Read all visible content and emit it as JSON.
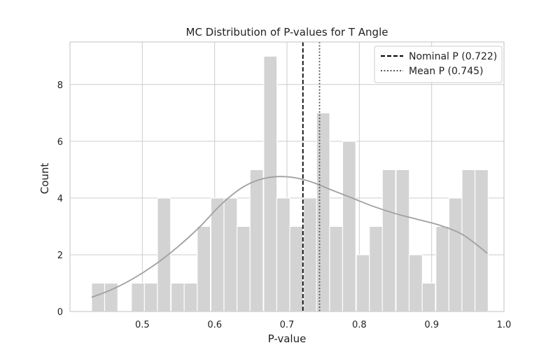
{
  "chart_data": {
    "type": "bar",
    "title": "MC Distribution of P-values for T Angle",
    "xlabel": "P-value",
    "ylabel": "Count",
    "xlim": [
      0.4,
      1.0
    ],
    "ylim": [
      0,
      9.5
    ],
    "x_ticks": [
      0.5,
      0.6,
      0.7,
      0.8,
      0.9,
      1.0
    ],
    "x_tick_labels": [
      "0.5",
      "0.6",
      "0.7",
      "0.8",
      "0.9",
      "1.0"
    ],
    "y_ticks": [
      0,
      2,
      4,
      6,
      8
    ],
    "y_tick_labels": [
      "0",
      "2",
      "4",
      "6",
      "8"
    ],
    "grid": true,
    "legend_position": "top-right",
    "bin_width": 0.01829,
    "bins": [
      {
        "x": 0.439,
        "count": 1
      },
      {
        "x": 0.457,
        "count": 1
      },
      {
        "x": 0.475,
        "count": 0
      },
      {
        "x": 0.494,
        "count": 1
      },
      {
        "x": 0.512,
        "count": 1
      },
      {
        "x": 0.53,
        "count": 4
      },
      {
        "x": 0.549,
        "count": 1
      },
      {
        "x": 0.567,
        "count": 1
      },
      {
        "x": 0.585,
        "count": 3
      },
      {
        "x": 0.604,
        "count": 4
      },
      {
        "x": 0.622,
        "count": 4
      },
      {
        "x": 0.64,
        "count": 3
      },
      {
        "x": 0.658,
        "count": 5
      },
      {
        "x": 0.677,
        "count": 9
      },
      {
        "x": 0.695,
        "count": 4
      },
      {
        "x": 0.713,
        "count": 3
      },
      {
        "x": 0.732,
        "count": 4
      },
      {
        "x": 0.75,
        "count": 7
      },
      {
        "x": 0.768,
        "count": 3
      },
      {
        "x": 0.786,
        "count": 6
      },
      {
        "x": 0.805,
        "count": 2
      },
      {
        "x": 0.823,
        "count": 3
      },
      {
        "x": 0.841,
        "count": 5
      },
      {
        "x": 0.86,
        "count": 5
      },
      {
        "x": 0.878,
        "count": 2
      },
      {
        "x": 0.896,
        "count": 1
      },
      {
        "x": 0.915,
        "count": 3
      },
      {
        "x": 0.933,
        "count": 4
      },
      {
        "x": 0.951,
        "count": 5
      },
      {
        "x": 0.969,
        "count": 5
      }
    ],
    "kde": {
      "x": [
        0.43,
        0.46,
        0.49,
        0.52,
        0.55,
        0.58,
        0.61,
        0.64,
        0.67,
        0.7,
        0.73,
        0.76,
        0.79,
        0.82,
        0.85,
        0.88,
        0.91,
        0.94,
        0.96,
        0.977
      ],
      "y": [
        0.5,
        0.8,
        1.2,
        1.7,
        2.3,
        3.0,
        3.8,
        4.4,
        4.7,
        4.75,
        4.6,
        4.3,
        4.0,
        3.7,
        3.45,
        3.25,
        3.05,
        2.75,
        2.4,
        2.05
      ]
    },
    "reference_lines": [
      {
        "name": "Nominal P (0.722)",
        "x": 0.722,
        "style": "dashed",
        "color": "#000000"
      },
      {
        "name": "Mean P (0.745)",
        "x": 0.745,
        "style": "dotted",
        "color": "#555555"
      }
    ],
    "colors": {
      "bar": "#d3d3d3",
      "bar_edge": "#ffffff",
      "kde": "#a0a0a0",
      "grid": "#cccccc",
      "frame": "#cccccc"
    }
  }
}
